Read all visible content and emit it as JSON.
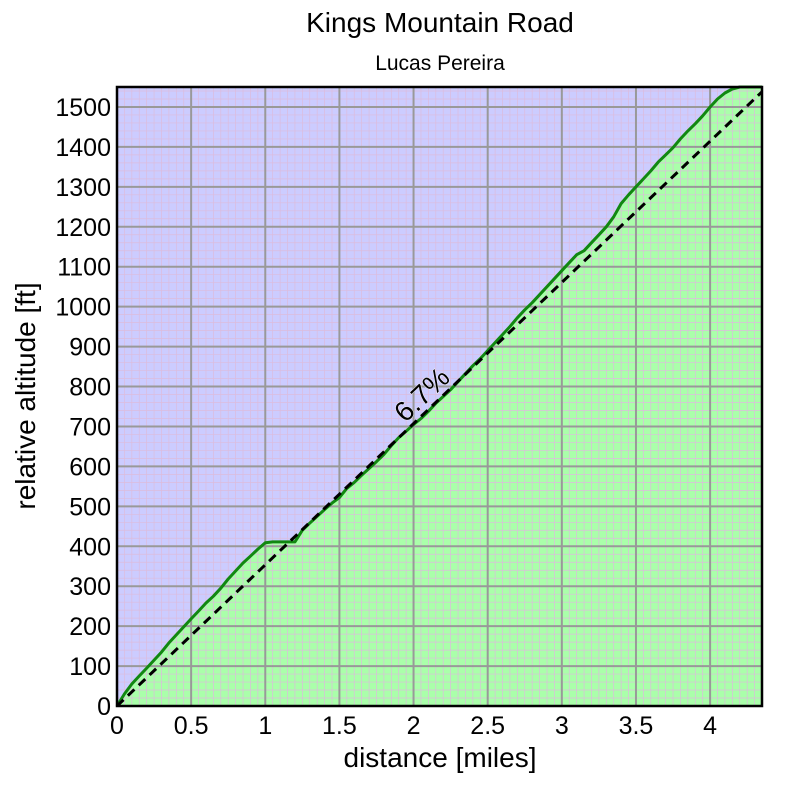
{
  "chart_data": {
    "type": "area",
    "title": "Kings Mountain Road",
    "subtitle": "Lucas Pereira",
    "xlabel": "distance [miles]",
    "ylabel": "relative altitude [ft]",
    "xlim": [
      0,
      4.35
    ],
    "ylim": [
      0,
      1550
    ],
    "x_ticks": [
      0,
      0.5,
      1,
      1.5,
      2,
      2.5,
      3,
      3.5,
      4
    ],
    "x_tick_labels": [
      "0",
      "0.5",
      "1",
      "1.5",
      "2",
      "2.5",
      "3",
      "3.5",
      "4"
    ],
    "y_ticks": [
      0,
      100,
      200,
      300,
      400,
      500,
      600,
      700,
      800,
      900,
      1000,
      1100,
      1200,
      1300,
      1400,
      1500
    ],
    "y_tick_labels": [
      "0",
      "100",
      "200",
      "300",
      "400",
      "500",
      "600",
      "700",
      "800",
      "900",
      "1000",
      "1100",
      "1200",
      "1300",
      "1400",
      "1500"
    ],
    "grid": true,
    "colors": {
      "sky": "#ccccff",
      "fill": "#aaffaa",
      "profile_line": "#118811",
      "major_grid": "#999999",
      "minor_grid": "#dcbcdc",
      "trend_line": "#000000"
    },
    "profile": {
      "x": [
        0,
        0.05,
        0.1,
        0.15,
        0.2,
        0.25,
        0.3,
        0.35,
        0.4,
        0.45,
        0.5,
        0.55,
        0.6,
        0.65,
        0.7,
        0.75,
        0.8,
        0.85,
        0.9,
        0.95,
        1.0,
        1.05,
        1.1,
        1.15,
        1.2,
        1.25,
        1.3,
        1.35,
        1.4,
        1.45,
        1.5,
        1.55,
        1.6,
        1.65,
        1.7,
        1.75,
        1.8,
        1.85,
        1.9,
        1.95,
        2.0,
        2.05,
        2.1,
        2.15,
        2.2,
        2.25,
        2.3,
        2.35,
        2.4,
        2.45,
        2.5,
        2.55,
        2.6,
        2.65,
        2.7,
        2.75,
        2.8,
        2.85,
        2.9,
        2.95,
        3.0,
        3.05,
        3.1,
        3.15,
        3.2,
        3.25,
        3.3,
        3.35,
        3.4,
        3.45,
        3.5,
        3.55,
        3.6,
        3.65,
        3.7,
        3.75,
        3.8,
        3.85,
        3.9,
        3.95,
        4.0,
        4.05,
        4.1,
        4.15,
        4.2,
        4.25,
        4.3,
        4.35
      ],
      "y": [
        0,
        30,
        55,
        75,
        95,
        115,
        135,
        158,
        178,
        198,
        218,
        238,
        258,
        275,
        295,
        318,
        338,
        358,
        375,
        393,
        409,
        411,
        411,
        411,
        411,
        440,
        458,
        475,
        492,
        508,
        522,
        545,
        560,
        578,
        595,
        612,
        630,
        652,
        672,
        688,
        705,
        720,
        738,
        758,
        775,
        792,
        812,
        832,
        852,
        870,
        890,
        910,
        930,
        950,
        972,
        992,
        1010,
        1030,
        1050,
        1070,
        1090,
        1110,
        1130,
        1140,
        1160,
        1180,
        1200,
        1225,
        1258,
        1280,
        1300,
        1320,
        1340,
        1362,
        1380,
        1398,
        1420,
        1440,
        1458,
        1478,
        1500,
        1520,
        1535,
        1545,
        1550,
        1550,
        1550,
        1550
      ]
    },
    "trend": {
      "label": "6.7%",
      "x": [
        0,
        4.35
      ],
      "y": [
        0,
        1538
      ]
    }
  }
}
